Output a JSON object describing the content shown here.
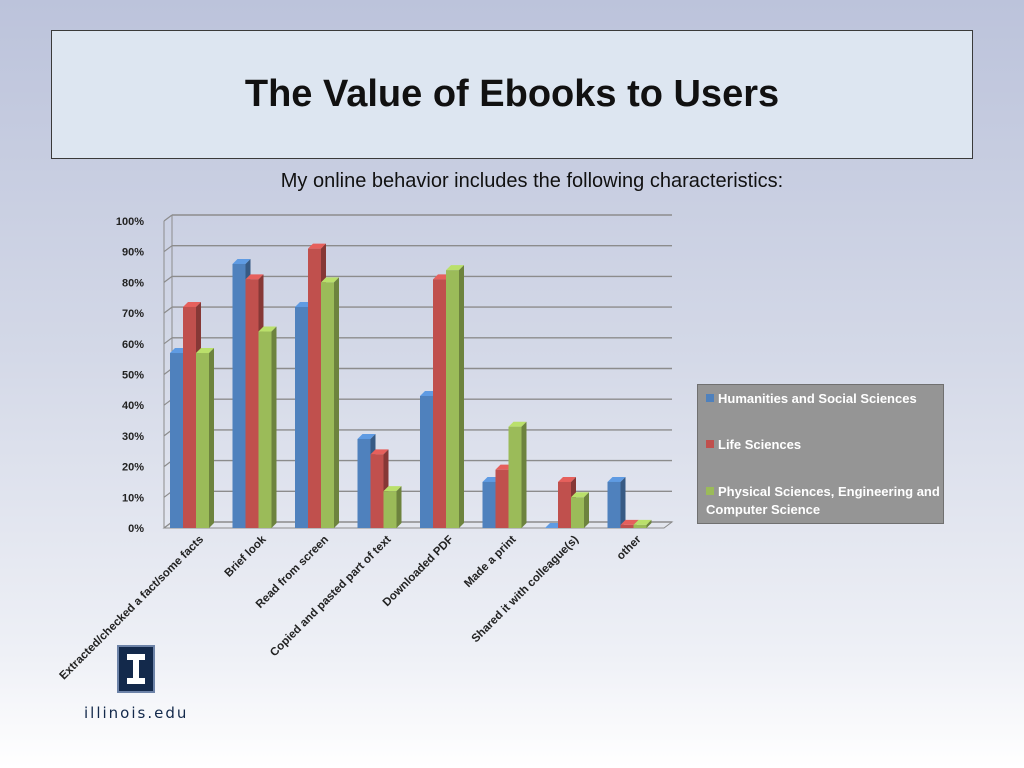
{
  "slide": {
    "title": "The Value of Ebooks to Users",
    "subtitle": "My online behavior includes the following characteristics:"
  },
  "chart_data": {
    "type": "bar",
    "title": "",
    "xlabel": "",
    "ylabel": "",
    "ylim": [
      0,
      100
    ],
    "y_ticks": [
      "0%",
      "10%",
      "20%",
      "30%",
      "40%",
      "50%",
      "60%",
      "70%",
      "80%",
      "90%",
      "100%"
    ],
    "grid": true,
    "legend_position": "right",
    "categories": [
      "Extracted/checked a fact/some facts",
      "Brief look",
      "Read from screen",
      "Copied and pasted part of text",
      "Downloaded PDF",
      "Made a print",
      "Shared it with colleague(s)",
      "other"
    ],
    "series": [
      {
        "name": "Humanities and Social Sciences",
        "color": "#4f81bd",
        "values": [
          57,
          86,
          72,
          29,
          43,
          15,
          0,
          15
        ]
      },
      {
        "name": "Life Sciences",
        "color": "#c0504d",
        "values": [
          72,
          81,
          91,
          24,
          81,
          19,
          15,
          1
        ]
      },
      {
        "name": "Physical Sciences, Engineering and Computer Science",
        "color": "#9bbb59",
        "values": [
          57,
          64,
          80,
          12,
          84,
          33,
          10,
          1
        ]
      }
    ]
  },
  "footer": {
    "logo_icon": "illinois-block-i-icon",
    "url": "illinois.edu"
  }
}
